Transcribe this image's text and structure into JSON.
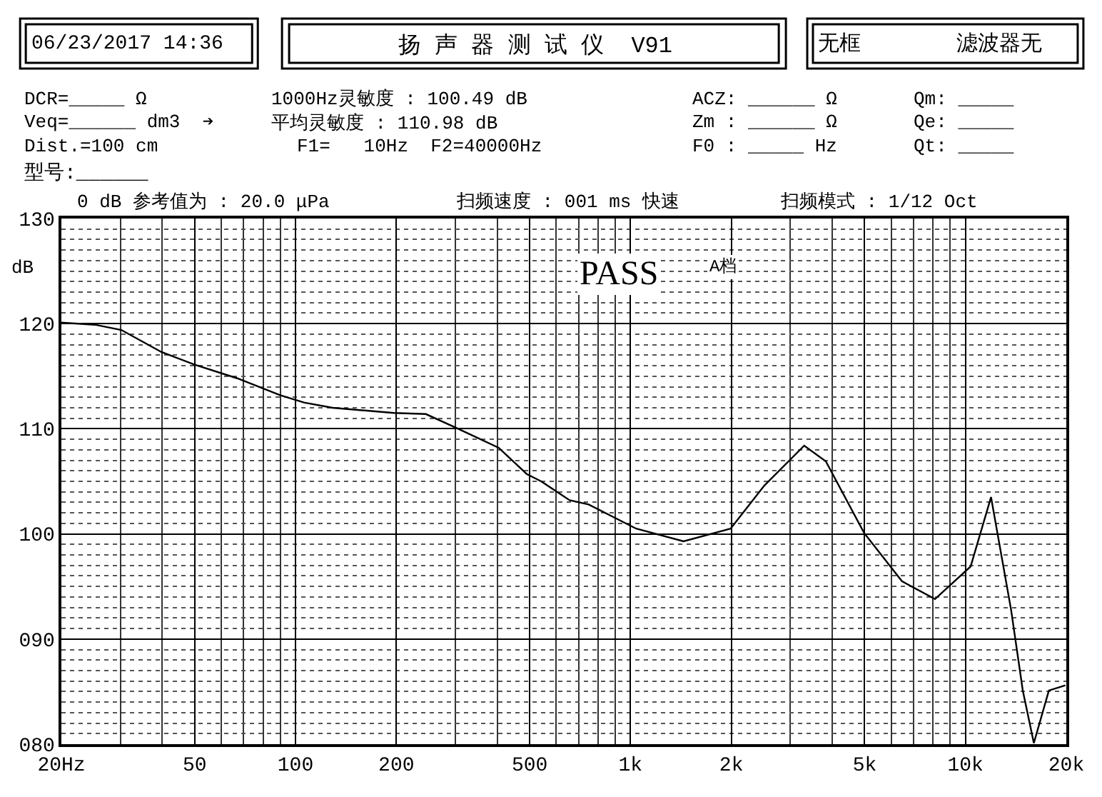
{
  "chart_data": {
    "type": "line",
    "title": "扬 声 器 测 试 仪  V91",
    "ylabel": "dB",
    "x": [
      20,
      25.2,
      30.2,
      39.8,
      50,
      67,
      90,
      106,
      129,
      197,
      245,
      301,
      404,
      490,
      541,
      658,
      750,
      1040,
      1440,
      1990,
      2510,
      3300,
      3830,
      4980,
      6460,
      8110,
      10360,
      11920,
      13680,
      14830,
      16000,
      17740,
      19870
    ],
    "series": [
      {
        "color": "#000000",
        "values": [
          120.1,
          119.9,
          119.4,
          117.3,
          116.1,
          114.8,
          113.2,
          112.5,
          112.0,
          111.5,
          111.4,
          110.1,
          108.2,
          105.7,
          105.0,
          103.2,
          102.8,
          100.5,
          99.3,
          100.5,
          104.6,
          108.4,
          106.9,
          100.1,
          95.5,
          93.8,
          96.9,
          103.5,
          92.8,
          85.1,
          80.1,
          85.1,
          85.6
        ]
      }
    ],
    "log": "x",
    "xlim": [
      20,
      20000
    ],
    "xticks": [
      {
        "value": 20,
        "label": "20Hz"
      },
      50,
      100,
      200,
      500,
      {
        "value": 1000,
        "label": "1k"
      },
      {
        "value": 2000,
        "label": "2k"
      },
      {
        "value": 5000,
        "label": "5k"
      },
      {
        "value": 10000,
        "label": "10k"
      },
      {
        "value": 20000,
        "label": "20k"
      }
    ],
    "ylim": [
      80,
      130
    ],
    "yticks": [
      {
        "value": 80,
        "label": "080"
      },
      {
        "value": 90,
        "label": "090"
      },
      100,
      110,
      120,
      130
    ],
    "grid": true,
    "marker": "none",
    "line_style": "solid",
    "annotations": [
      "06/23/2017 14:36",
      "无框",
      "滤波器无",
      "DCR=_____ Ω",
      "Veq=______ dm3  ➔",
      "Dist.=100 cm",
      "1000Hz灵敏度 : 100.49 dB",
      "平均灵敏度 : 110.98 dB",
      "F1=   10Hz  F2=40000Hz",
      "ACZ: ______ Ω",
      "Zm : ______ Ω",
      "F0 : _____ Hz",
      "Qm: _____",
      "Qe: _____",
      "Qt: _____",
      "型号:______",
      "0 dB 参考值为 : 20.0 μPa",
      "扫频速度 : 001 ms 快速",
      "扫频模式 : 1/12 Oct",
      "PASS",
      "A档"
    ]
  }
}
